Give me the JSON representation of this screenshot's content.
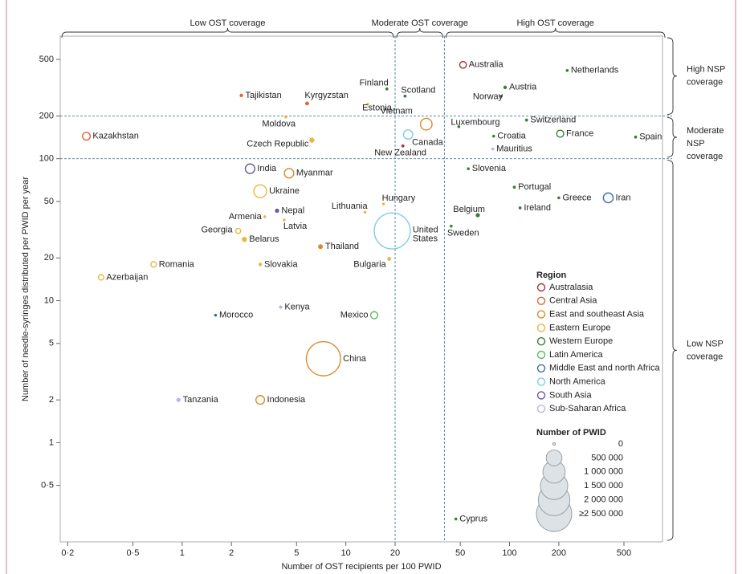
{
  "chart_data": {
    "type": "scatter",
    "x_label": "Number of OST recipients per 100 PWID",
    "y_label": "Number of needle-syringes distributed per PWID per year",
    "log_x": true,
    "log_y": true,
    "xlim": [
      0.18,
      860
    ],
    "ylim": [
      0.2,
      730
    ],
    "xticks": [
      {
        "value": 0.2,
        "label": "0·2"
      },
      {
        "value": 0.5,
        "label": "0·5"
      },
      1,
      2,
      5,
      10,
      20,
      50,
      100,
      200,
      500
    ],
    "yticks": [
      {
        "value": 0.5,
        "label": "0·5"
      },
      1,
      2,
      5,
      10,
      20,
      50,
      100,
      200,
      500
    ],
    "x_thresholds": [
      20,
      40
    ],
    "y_thresholds": [
      100,
      200
    ],
    "x_band_labels": [
      "Low OST coverage",
      "Moderate OST coverage",
      "High OST coverage"
    ],
    "y_band_labels": [
      "Low NSP coverage",
      "Moderate NSP coverage",
      "High NSP coverage"
    ],
    "legend_title": "Region",
    "size_legend": {
      "title": "Number of PWID",
      "ticks": [
        0,
        {
          "value": 500000,
          "label": "500 000"
        },
        {
          "value": 1000000,
          "label": "1 000 000"
        },
        {
          "value": 1500000,
          "label": "1 500 000"
        },
        {
          "value": 2000000,
          "label": "2 000 000"
        },
        {
          "value": 2500000,
          "label": "≥2 500 000"
        }
      ]
    },
    "series": [
      {
        "name": "Australasia",
        "color": "#a8323e",
        "labels": [
          "Australia",
          "New Zealand"
        ],
        "x": [
          52,
          22.3
        ],
        "values": [
          458,
          123
        ],
        "sizes": [
          90000,
          15000
        ]
      },
      {
        "name": "Central Asia",
        "color": "#e4633a",
        "labels": [
          "Kazakhstan",
          "Tajikistan",
          "Kyrgyzstan"
        ],
        "x": [
          0.26,
          2.3,
          5.8
        ],
        "values": [
          144,
          279,
          245
        ],
        "sizes": [
          120000,
          20000,
          25000
        ]
      },
      {
        "name": "East and southeast Asia",
        "color": "#d98b2b",
        "labels": [
          "Vietnam",
          "Myanmar",
          "Thailand",
          "China",
          "Indonesia"
        ],
        "x": [
          31,
          4.5,
          7,
          7.3,
          3.0
        ],
        "values": [
          175,
          79,
          24,
          3.9,
          2.0
        ],
        "sizes": [
          270000,
          180000,
          40000,
          2350000,
          150000
        ]
      },
      {
        "name": "Eastern Europe",
        "color": "#e8b840",
        "labels": [
          "Moldova",
          "Estonia",
          "Czech Republic",
          "Ukraine",
          "Lithuania",
          "Latvia",
          "Belarus",
          "Georgia",
          "Armenia",
          "Slovakia",
          "Romania",
          "Bulgaria",
          "Hungary",
          "Azerbaijan"
        ],
        "x": [
          4.3,
          13.6,
          6.2,
          3.0,
          13.1,
          4.2,
          2.4,
          2.2,
          3.2,
          3.0,
          0.67,
          18.4,
          17,
          0.32
        ],
        "values": [
          197,
          242,
          135,
          59,
          42,
          37,
          27,
          31,
          39,
          18,
          18,
          19.7,
          48,
          14.6
        ],
        "sizes": [
          15000,
          10000,
          45000,
          330000,
          8000,
          10000,
          45000,
          50000,
          8000,
          20000,
          60000,
          25000,
          5000,
          60000
        ]
      },
      {
        "name": "Western Europe",
        "color": "#3d7a3d",
        "labels": [
          "Netherlands",
          "Austria",
          "Norway",
          "Finland",
          "Scotland",
          "Luxembourg",
          "Switzerland",
          "France",
          "Spain",
          "Croatia",
          "Slovenia",
          "Portugal",
          "Greece",
          "Belgium",
          "Ireland",
          "Sweden",
          "Cyprus"
        ],
        "x": [
          225,
          94,
          89,
          17.8,
          23,
          49,
          127,
          204,
          589,
          80,
          56,
          107,
          200,
          64,
          116,
          44,
          47
        ],
        "values": [
          418,
          318,
          276,
          310,
          276,
          168,
          187,
          150,
          142,
          144,
          85,
          63,
          53,
          40,
          45,
          33.5,
          0.29
        ],
        "sizes": [
          5000,
          20000,
          10000,
          15000,
          15000,
          2000,
          15000,
          100000,
          15000,
          8000,
          6000,
          15000,
          10000,
          30000,
          15000,
          8000,
          1000
        ]
      },
      {
        "name": "Latin America",
        "color": "#5cb85c",
        "labels": [
          "Mexico"
        ],
        "x": [
          14.9
        ],
        "values": [
          7.9
        ],
        "sizes": [
          100000
        ]
      },
      {
        "name": "Middle East and north Africa",
        "color": "#3c6e9e",
        "labels": [
          "Iran",
          "Morocco"
        ],
        "x": [
          401,
          1.6
        ],
        "values": [
          53,
          7.9
        ],
        "sizes": [
          190000,
          3000
        ]
      },
      {
        "name": "North America",
        "color": "#82cde6",
        "labels": [
          "Canada",
          "United States"
        ],
        "x": [
          24,
          19.2
        ],
        "values": [
          148,
          31
        ],
        "sizes": [
          170000,
          2600000
        ]
      },
      {
        "name": "South Asia",
        "color": "#6a5a9e",
        "labels": [
          "India",
          "Nepal"
        ],
        "x": [
          2.6,
          3.8
        ],
        "values": [
          85,
          43
        ],
        "sizes": [
          180000,
          30000
        ]
      },
      {
        "name": "Sub-Saharan Africa",
        "color": "#b7b7e2",
        "labels": [
          "Mauritius",
          "Kenya",
          "Tanzania"
        ],
        "x": [
          79,
          4,
          0.95
        ],
        "values": [
          117,
          9,
          2
        ],
        "sizes": [
          1000,
          18000,
          30000
        ]
      }
    ]
  }
}
